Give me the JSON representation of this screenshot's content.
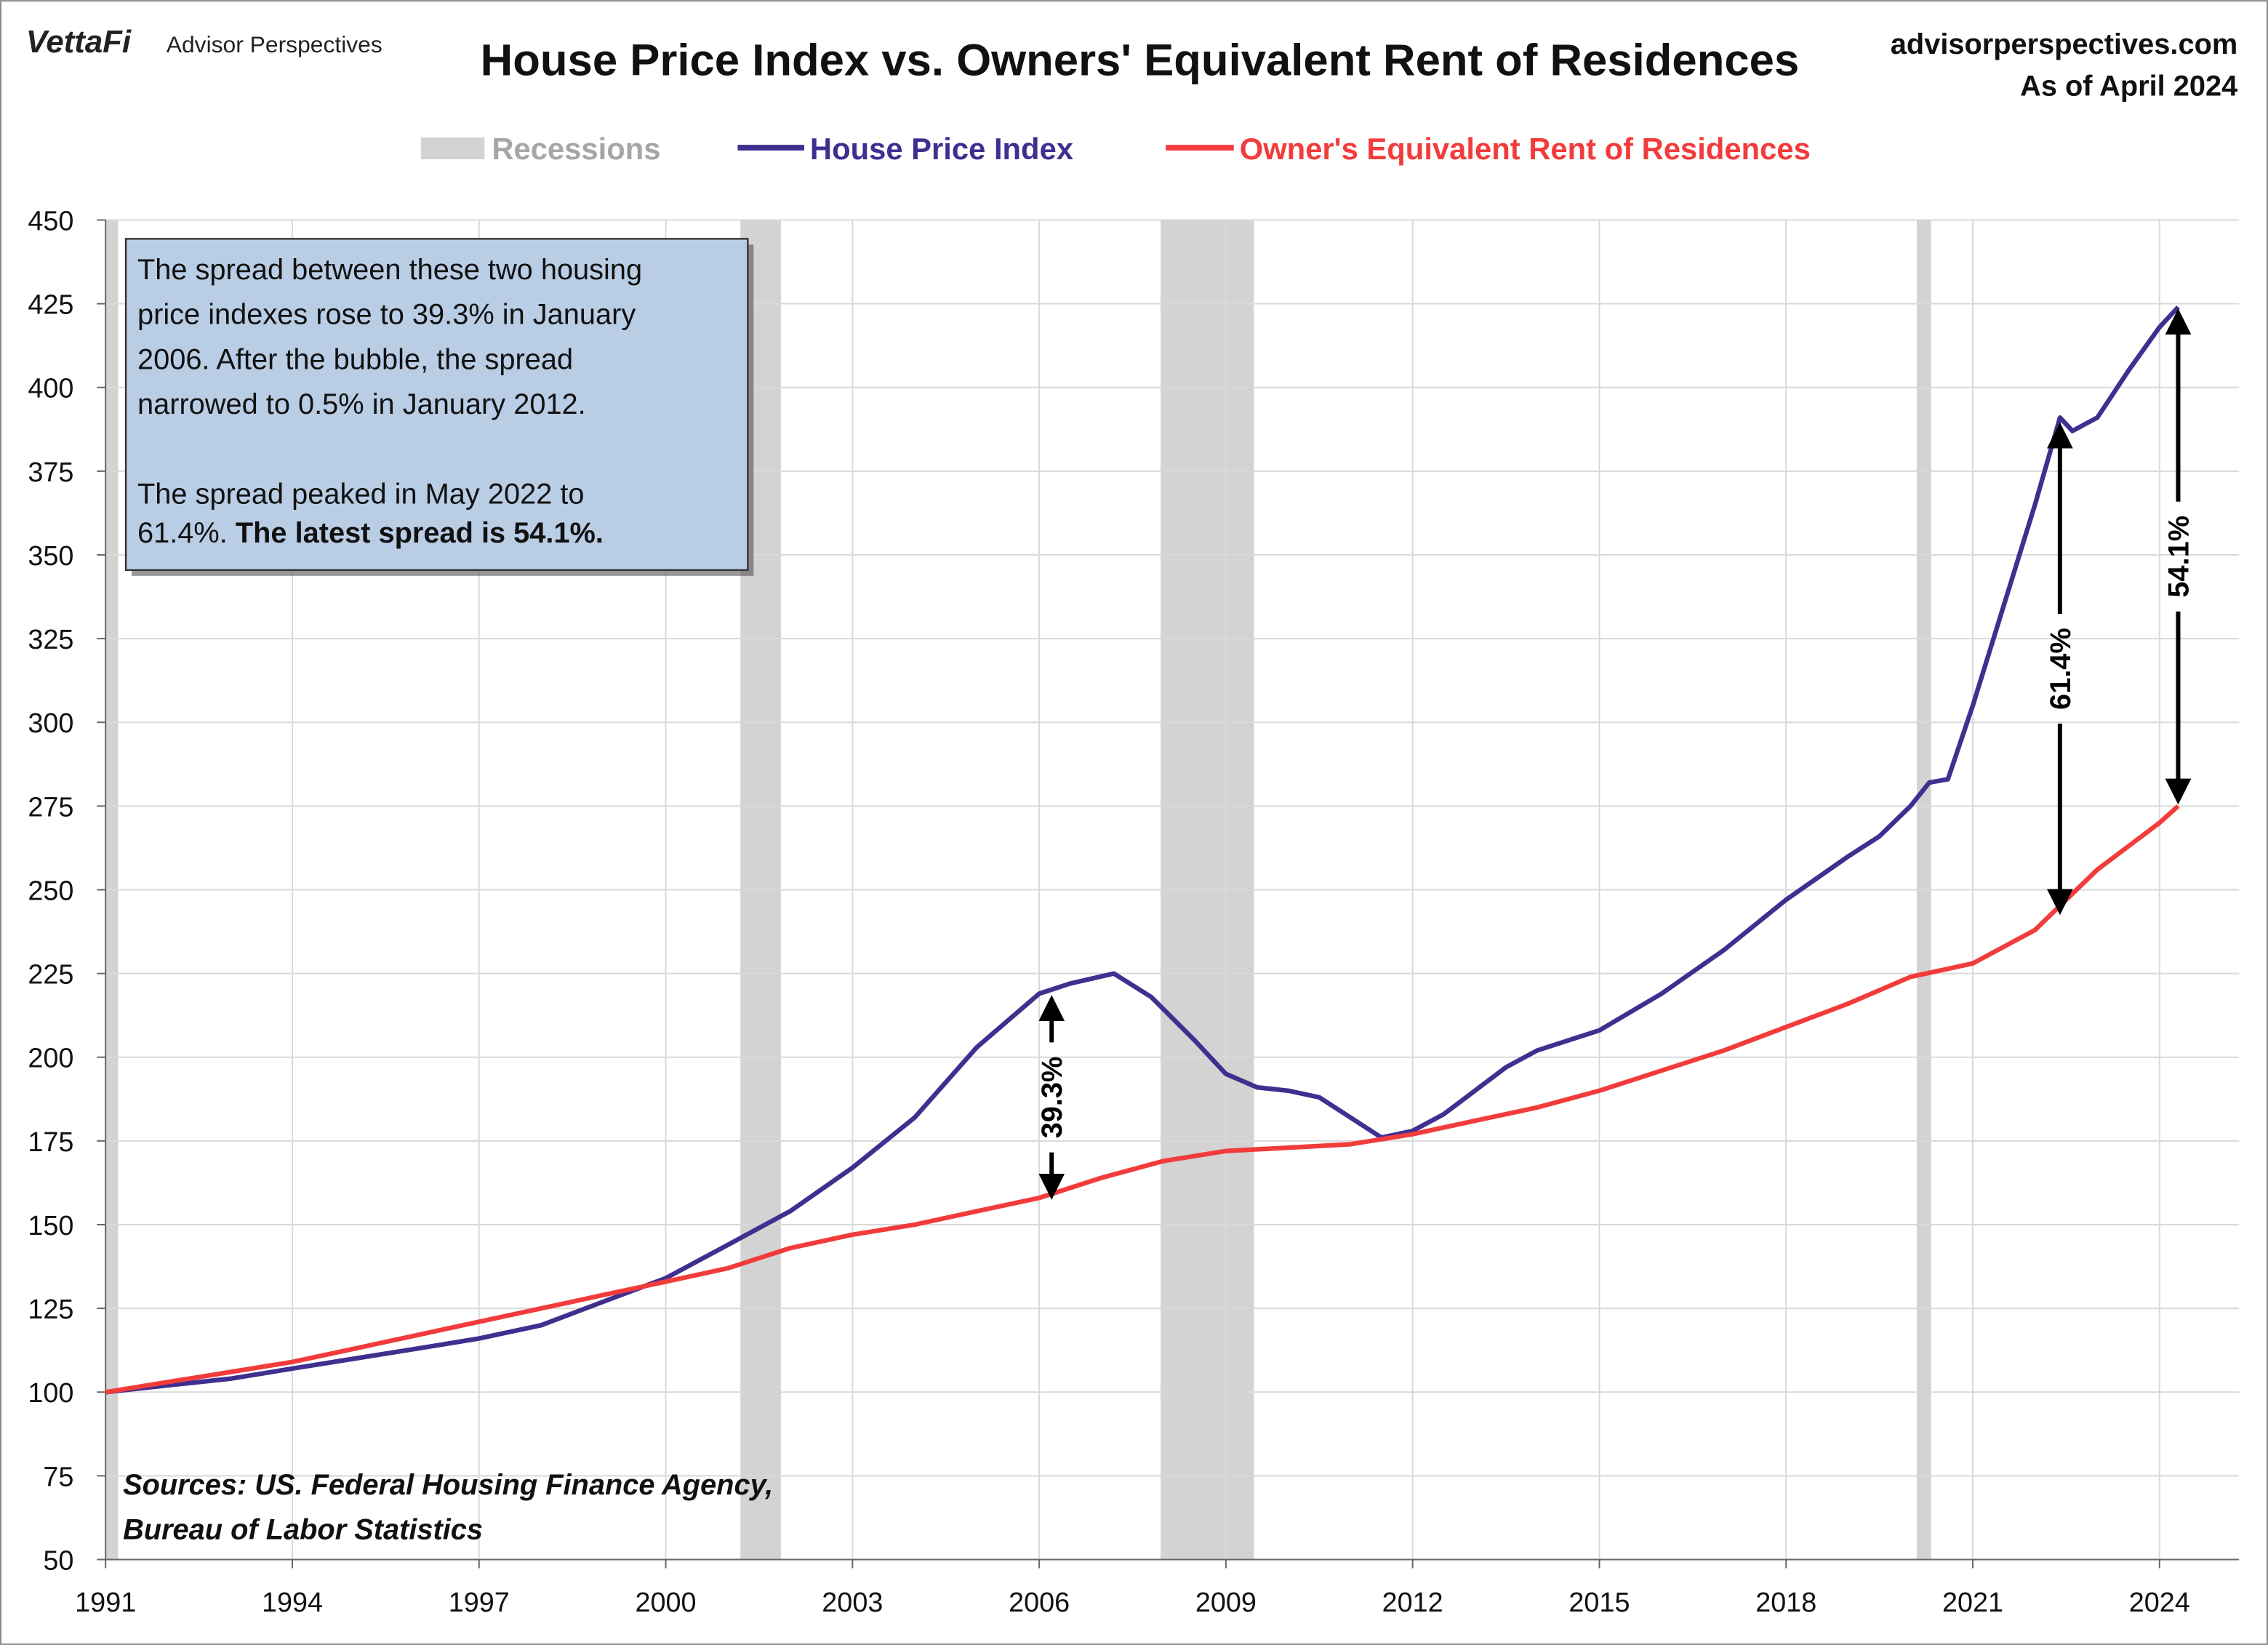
{
  "header": {
    "logo_brand": "VettaFi",
    "logo_sub": "Advisor Perspectives",
    "title": "House Price Index vs. Owners' Equivalent Rent of Residences",
    "site": "advisorperspectives.com",
    "as_of": "As of April 2024"
  },
  "sources": [
    "Sources: US. Federal Housing Finance Agency,",
    "Bureau of Labor Statistics"
  ],
  "textbox": {
    "lines": [
      "The spread between these two housing",
      "price indexes rose to 39.3% in January",
      "2006. After the bubble, the spread",
      "narrowed to 0.5% in January 2012.",
      "",
      "The spread peaked in May 2022 to"
    ],
    "last_normal": "61.4%. ",
    "last_bold": "The latest spread is 54.1%.",
    "fill": "#b9cde5"
  },
  "chart_data": {
    "type": "line",
    "title": "House Price Index vs. Owners' Equivalent Rent of Residences",
    "xlim": [
      1991,
      2024.6
    ],
    "ylim": [
      50,
      450
    ],
    "x_ticks": [
      1991,
      1994,
      1997,
      2000,
      2003,
      2006,
      2009,
      2012,
      2015,
      2018,
      2021,
      2024
    ],
    "y_ticks": [
      50,
      75,
      100,
      125,
      150,
      175,
      200,
      225,
      250,
      275,
      300,
      325,
      350,
      375,
      400,
      425,
      450
    ],
    "grid": true,
    "legend_position": "top",
    "legend": [
      "Recessions",
      "House Price Index",
      "Owner's Equivalent Rent of Residences"
    ],
    "recessions": [
      [
        1990.6,
        1991.2
      ],
      [
        2001.2,
        2001.85
      ],
      [
        2007.95,
        2009.45
      ],
      [
        2020.1,
        2020.33
      ]
    ],
    "recession_color": "#d3d3d3",
    "series": [
      {
        "name": "House Price Index",
        "color": "#3f2f8f",
        "points": [
          [
            1991,
            100
          ],
          [
            1992,
            102
          ],
          [
            1993,
            104
          ],
          [
            1994,
            107
          ],
          [
            1995,
            110
          ],
          [
            1996,
            113
          ],
          [
            1997,
            116
          ],
          [
            1998,
            120
          ],
          [
            1999,
            127
          ],
          [
            2000,
            134
          ],
          [
            2001,
            144
          ],
          [
            2002,
            154
          ],
          [
            2003,
            167
          ],
          [
            2004,
            182
          ],
          [
            2005,
            203
          ],
          [
            2006,
            219
          ],
          [
            2006.5,
            222
          ],
          [
            2007.2,
            225
          ],
          [
            2007.8,
            218
          ],
          [
            2008.5,
            205
          ],
          [
            2009,
            195
          ],
          [
            2009.5,
            191
          ],
          [
            2010,
            190
          ],
          [
            2010.5,
            188
          ],
          [
            2011,
            182
          ],
          [
            2011.5,
            176
          ],
          [
            2012,
            178
          ],
          [
            2012.5,
            183
          ],
          [
            2013,
            190
          ],
          [
            2013.5,
            197
          ],
          [
            2014,
            202
          ],
          [
            2015,
            208
          ],
          [
            2016,
            219
          ],
          [
            2017,
            232
          ],
          [
            2018,
            247
          ],
          [
            2019,
            260
          ],
          [
            2019.5,
            266
          ],
          [
            2020,
            275
          ],
          [
            2020.3,
            282
          ],
          [
            2020.6,
            283
          ],
          [
            2021,
            305
          ],
          [
            2021.5,
            335
          ],
          [
            2022,
            365
          ],
          [
            2022.4,
            391
          ],
          [
            2022.6,
            387
          ],
          [
            2023,
            391
          ],
          [
            2023.5,
            405
          ],
          [
            2024,
            418
          ],
          [
            2024.3,
            424
          ]
        ]
      },
      {
        "name": "Owner's Equivalent Rent of Residences",
        "color": "#f23c3c",
        "points": [
          [
            1991,
            100
          ],
          [
            1992,
            103
          ],
          [
            1993,
            106
          ],
          [
            1994,
            109
          ],
          [
            1995,
            113
          ],
          [
            1996,
            117
          ],
          [
            1997,
            121
          ],
          [
            1998,
            125
          ],
          [
            1999,
            129
          ],
          [
            2000,
            133
          ],
          [
            2001,
            137
          ],
          [
            2002,
            143
          ],
          [
            2003,
            147
          ],
          [
            2004,
            150
          ],
          [
            2005,
            154
          ],
          [
            2006,
            158
          ],
          [
            2007,
            164
          ],
          [
            2008,
            169
          ],
          [
            2009,
            172
          ],
          [
            2010,
            173
          ],
          [
            2011,
            174
          ],
          [
            2012,
            177
          ],
          [
            2013,
            181
          ],
          [
            2014,
            185
          ],
          [
            2015,
            190
          ],
          [
            2016,
            196
          ],
          [
            2017,
            202
          ],
          [
            2018,
            209
          ],
          [
            2019,
            216
          ],
          [
            2020,
            224
          ],
          [
            2021,
            228
          ],
          [
            2022,
            238
          ],
          [
            2023,
            256
          ],
          [
            2024,
            270
          ],
          [
            2024.3,
            275
          ]
        ]
      }
    ],
    "annotations": [
      {
        "label": "39.3%",
        "x": 2006.2,
        "y_top": 219,
        "y_bottom": 157
      },
      {
        "label": "61.4%",
        "x": 2022.4,
        "y_top": 390,
        "y_bottom": 242
      },
      {
        "label": "54.1%",
        "x": 2024.3,
        "y_top": 424,
        "y_bottom": 275
      }
    ]
  }
}
